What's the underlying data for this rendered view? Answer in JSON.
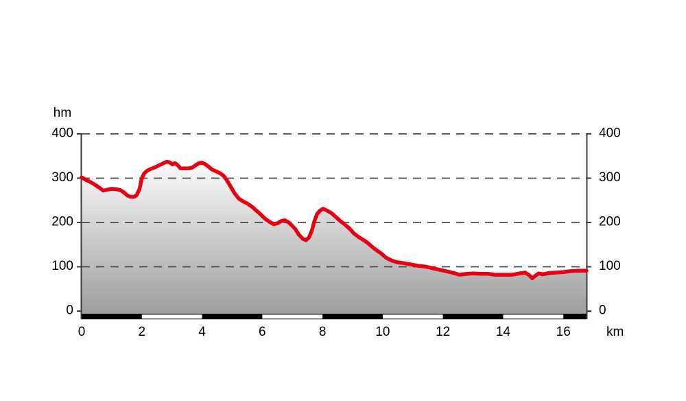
{
  "chart_data": {
    "type": "area",
    "xlabel": "km",
    "ylabel": "hm",
    "xlim": [
      0,
      16.77
    ],
    "ylim": [
      0,
      400
    ],
    "grid": "horizontal dashed lines at 100, 200, 300, 400",
    "legend": "none",
    "y_axis_sides": [
      "left",
      "right"
    ],
    "scalebar": "alternating black and white 2 km segments along the x axis",
    "scalebar_interval_km": 2,
    "x_ticks": [
      {
        "label": "0",
        "value": 0
      },
      {
        "label": "2",
        "value": 2
      },
      {
        "label": "4",
        "value": 4
      },
      {
        "label": "6",
        "value": 6
      },
      {
        "label": "8",
        "value": 8
      },
      {
        "label": "10",
        "value": 10
      },
      {
        "label": "12",
        "value": 12
      },
      {
        "label": "14",
        "value": 14
      },
      {
        "label": "16",
        "value": 16
      }
    ],
    "y_ticks": [
      {
        "label": "400",
        "value": 400
      },
      {
        "label": "300",
        "value": 300
      },
      {
        "label": "200",
        "value": 200
      },
      {
        "label": "100",
        "value": 100
      },
      {
        "label": "0",
        "value": 0
      }
    ],
    "gridline_values": [
      400,
      300,
      200,
      100
    ],
    "series": [
      {
        "name": "elevation",
        "units_x": "km",
        "units_y": "hm",
        "points": [
          [
            0.0,
            302
          ],
          [
            0.15,
            296
          ],
          [
            0.3,
            291
          ],
          [
            0.45,
            285
          ],
          [
            0.6,
            278
          ],
          [
            0.72,
            272
          ],
          [
            0.85,
            274
          ],
          [
            1.0,
            276
          ],
          [
            1.15,
            275
          ],
          [
            1.28,
            273
          ],
          [
            1.4,
            268
          ],
          [
            1.52,
            261
          ],
          [
            1.62,
            258
          ],
          [
            1.75,
            258
          ],
          [
            1.83,
            262
          ],
          [
            1.92,
            275
          ],
          [
            2.0,
            300
          ],
          [
            2.08,
            311
          ],
          [
            2.18,
            317
          ],
          [
            2.3,
            321
          ],
          [
            2.45,
            325
          ],
          [
            2.6,
            330
          ],
          [
            2.72,
            334
          ],
          [
            2.82,
            337
          ],
          [
            2.92,
            336
          ],
          [
            3.02,
            331
          ],
          [
            3.1,
            334
          ],
          [
            3.2,
            329
          ],
          [
            3.28,
            322
          ],
          [
            3.4,
            322
          ],
          [
            3.55,
            322
          ],
          [
            3.68,
            324
          ],
          [
            3.78,
            329
          ],
          [
            3.9,
            334
          ],
          [
            4.0,
            335
          ],
          [
            4.1,
            332
          ],
          [
            4.2,
            327
          ],
          [
            4.32,
            320
          ],
          [
            4.45,
            316
          ],
          [
            4.6,
            311
          ],
          [
            4.72,
            305
          ],
          [
            4.82,
            296
          ],
          [
            4.95,
            281
          ],
          [
            5.08,
            266
          ],
          [
            5.22,
            254
          ],
          [
            5.35,
            248
          ],
          [
            5.5,
            243
          ],
          [
            5.65,
            236
          ],
          [
            5.8,
            227
          ],
          [
            5.95,
            218
          ],
          [
            6.1,
            208
          ],
          [
            6.25,
            201
          ],
          [
            6.38,
            196
          ],
          [
            6.5,
            198
          ],
          [
            6.62,
            203
          ],
          [
            6.75,
            205
          ],
          [
            6.88,
            200
          ],
          [
            7.0,
            192
          ],
          [
            7.1,
            185
          ],
          [
            7.22,
            172
          ],
          [
            7.35,
            163
          ],
          [
            7.45,
            160
          ],
          [
            7.55,
            166
          ],
          [
            7.65,
            182
          ],
          [
            7.73,
            203
          ],
          [
            7.82,
            219
          ],
          [
            7.92,
            227
          ],
          [
            8.02,
            231
          ],
          [
            8.15,
            227
          ],
          [
            8.3,
            221
          ],
          [
            8.45,
            212
          ],
          [
            8.6,
            203
          ],
          [
            8.75,
            195
          ],
          [
            8.9,
            186
          ],
          [
            9.05,
            175
          ],
          [
            9.2,
            167
          ],
          [
            9.35,
            161
          ],
          [
            9.5,
            154
          ],
          [
            9.65,
            145
          ],
          [
            9.8,
            137
          ],
          [
            9.95,
            130
          ],
          [
            10.1,
            121
          ],
          [
            10.3,
            114
          ],
          [
            10.5,
            110
          ],
          [
            10.72,
            108
          ],
          [
            10.95,
            105
          ],
          [
            11.2,
            102
          ],
          [
            11.45,
            100
          ],
          [
            11.7,
            96
          ],
          [
            11.9,
            93
          ],
          [
            12.1,
            90
          ],
          [
            12.35,
            86
          ],
          [
            12.55,
            82
          ],
          [
            12.8,
            84
          ],
          [
            13.0,
            85
          ],
          [
            13.25,
            84
          ],
          [
            13.5,
            84
          ],
          [
            13.72,
            82
          ],
          [
            14.0,
            82
          ],
          [
            14.3,
            82
          ],
          [
            14.55,
            85
          ],
          [
            14.72,
            87
          ],
          [
            14.85,
            82
          ],
          [
            14.97,
            74
          ],
          [
            15.08,
            80
          ],
          [
            15.18,
            85
          ],
          [
            15.32,
            83
          ],
          [
            15.55,
            86
          ],
          [
            15.8,
            87
          ],
          [
            16.0,
            88
          ],
          [
            16.25,
            90
          ],
          [
            16.5,
            91
          ],
          [
            16.77,
            91
          ]
        ]
      }
    ]
  },
  "colors": {
    "background": "#ffffff",
    "line": "#e8000e",
    "grid": "#4a4a4a",
    "axis": "#3c3c3c",
    "text": "#000000",
    "fill_top": "#ffffff",
    "fill_bottom": "#9e9e9e",
    "scalebar_dark": "#000000",
    "scalebar_light": "#ffffff"
  }
}
